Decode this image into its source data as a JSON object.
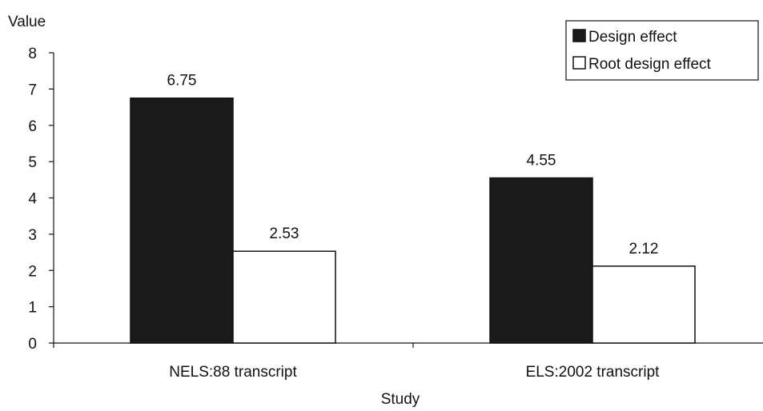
{
  "chart_data": {
    "type": "bar",
    "categories": [
      "NELS:88 transcript",
      "ELS:2002 transcript"
    ],
    "series": [
      {
        "name": "Design effect",
        "values": [
          6.75,
          4.55
        ],
        "color": "#1a1a1a",
        "labels": [
          "6.75",
          "4.55"
        ]
      },
      {
        "name": "Root design effect",
        "values": [
          2.53,
          2.12
        ],
        "color": "#ffffff",
        "labels": [
          "2.53",
          "2.12"
        ]
      }
    ],
    "title": "",
    "xlabel": "Study",
    "ylabel": "Value",
    "ylim": [
      0,
      8
    ],
    "yticks": [
      0,
      1,
      2,
      3,
      4,
      5,
      6,
      7,
      8
    ],
    "ytick_labels": [
      "0",
      "1",
      "2",
      "3",
      "4",
      "5",
      "6",
      "7",
      "8"
    ],
    "grid": false,
    "legend_position": "top-right"
  }
}
